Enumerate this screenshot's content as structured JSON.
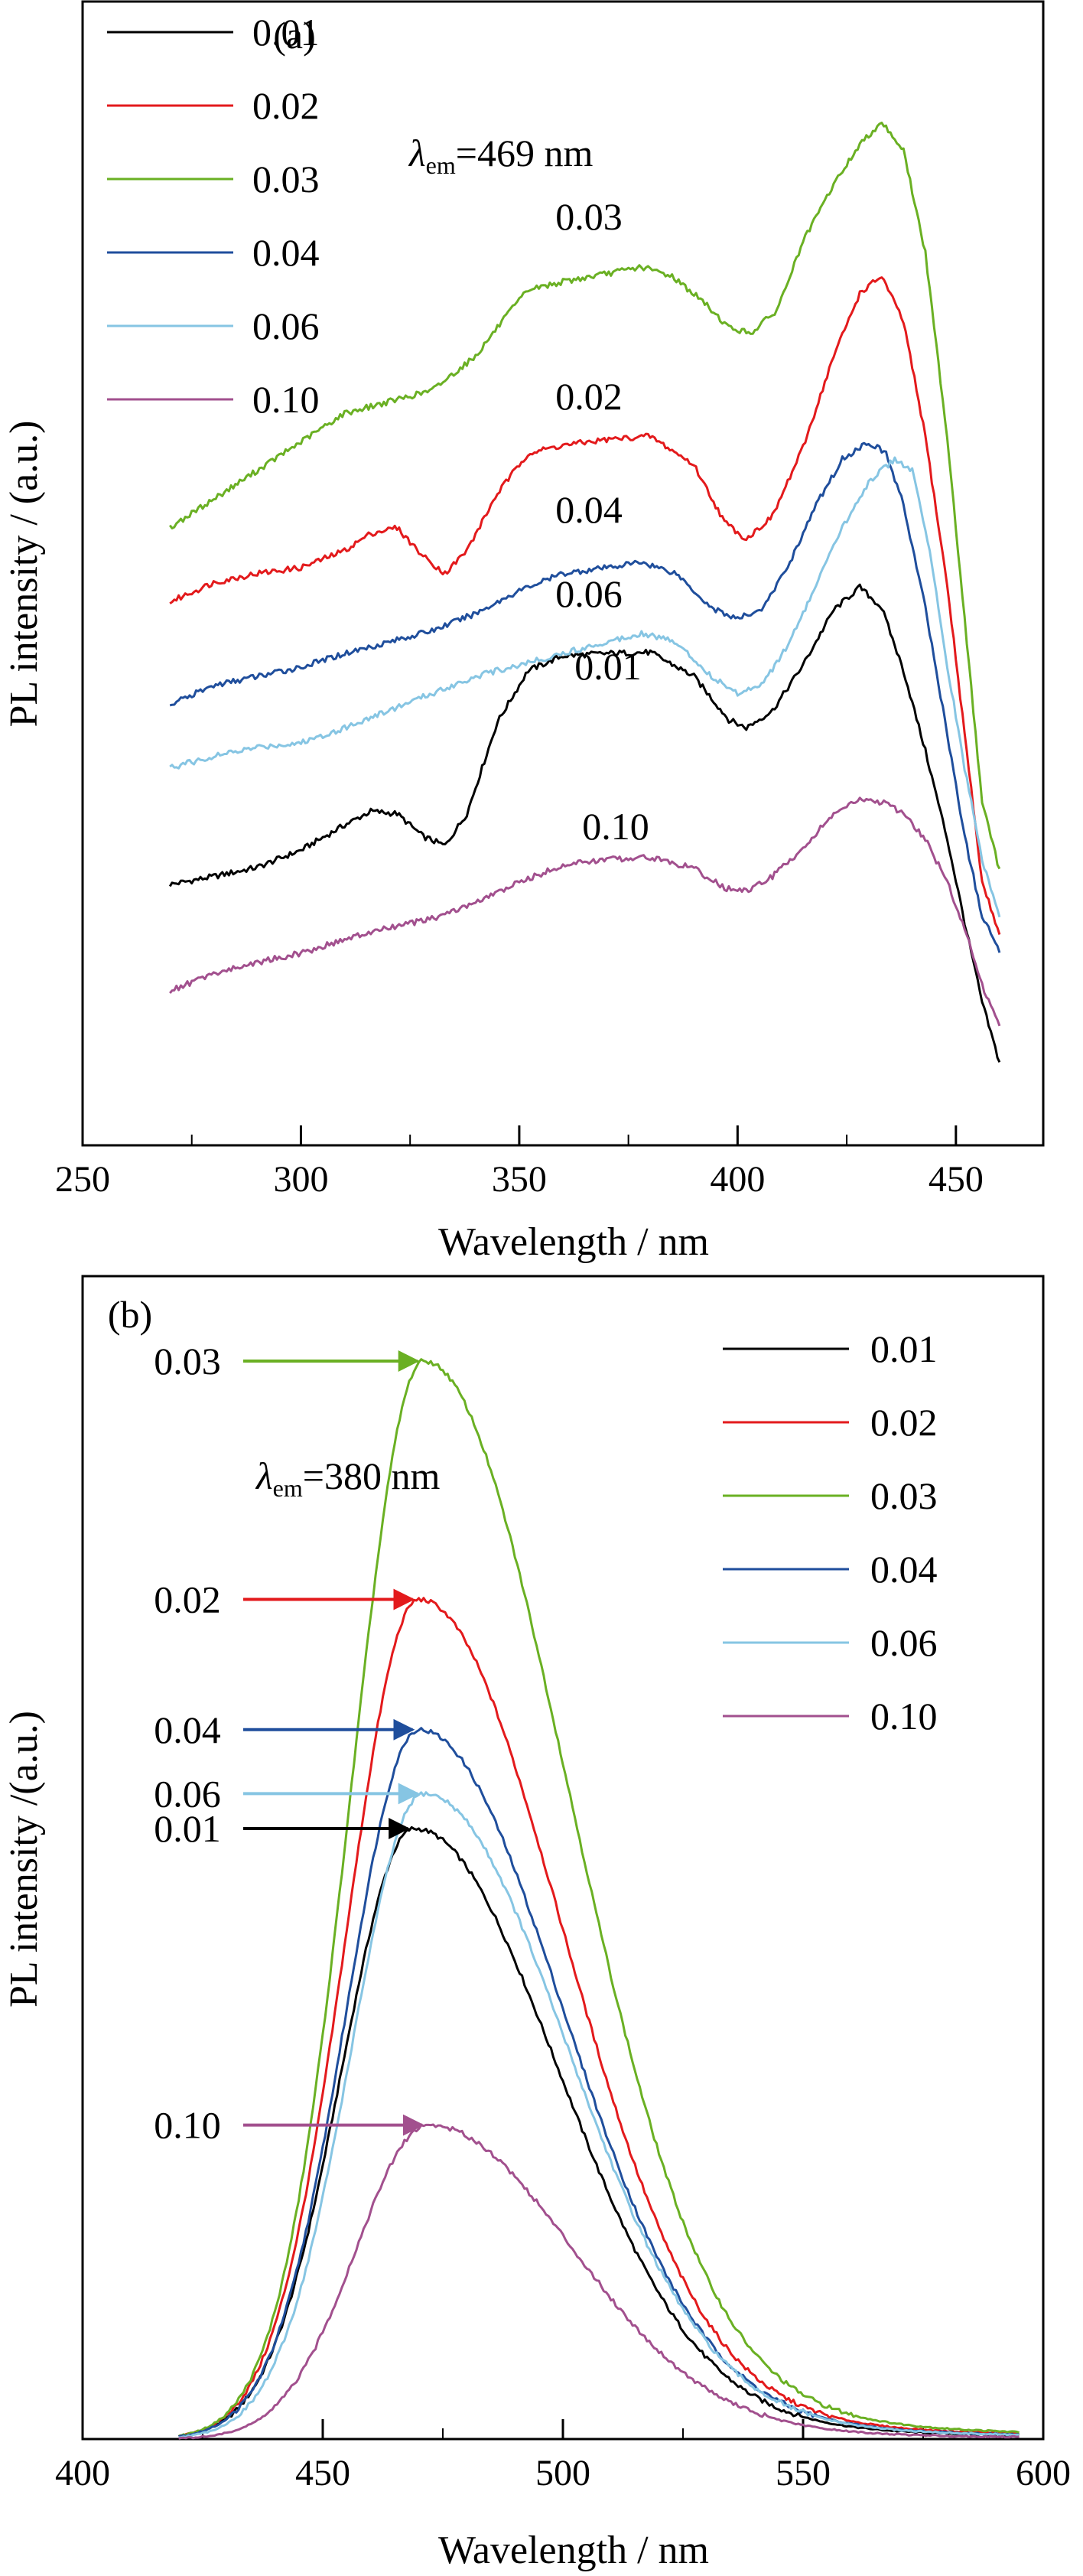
{
  "chart_data": [
    {
      "type": "line",
      "panel_label": "(a)",
      "annotation": {
        "symbol": "λ",
        "subscript": "em",
        "text": "=469 nm"
      },
      "xlabel": "Wavelength / nm",
      "ylabel": "PL intensity / (a.u.)",
      "xlim": [
        250,
        470
      ],
      "ylim": [
        0,
        1
      ],
      "x_ticks": [
        250,
        300,
        350,
        400,
        450
      ],
      "grid": false,
      "legend_position": "top-left",
      "series": [
        {
          "name": "0.01",
          "color": "#000000",
          "points": [
            [
              270,
              0.228
            ],
            [
              280,
              0.235
            ],
            [
              290,
              0.243
            ],
            [
              300,
              0.258
            ],
            [
              310,
              0.28
            ],
            [
              316,
              0.292
            ],
            [
              322,
              0.29
            ],
            [
              328,
              0.27
            ],
            [
              333,
              0.262
            ],
            [
              338,
              0.29
            ],
            [
              345,
              0.37
            ],
            [
              352,
              0.415
            ],
            [
              360,
              0.428
            ],
            [
              370,
              0.43
            ],
            [
              380,
              0.431
            ],
            [
              390,
              0.41
            ],
            [
              398,
              0.372
            ],
            [
              402,
              0.365
            ],
            [
              408,
              0.38
            ],
            [
              415,
              0.42
            ],
            [
              422,
              0.468
            ],
            [
              428,
              0.488
            ],
            [
              433,
              0.47
            ],
            [
              438,
              0.415
            ],
            [
              443,
              0.345
            ],
            [
              448,
              0.268
            ],
            [
              452,
              0.195
            ],
            [
              456,
              0.125
            ],
            [
              460,
              0.072
            ]
          ],
          "label": "0.01"
        },
        {
          "name": "0.02",
          "color": "#e31a1c",
          "points": [
            [
              270,
              0.475
            ],
            [
              280,
              0.492
            ],
            [
              290,
              0.5
            ],
            [
              300,
              0.505
            ],
            [
              310,
              0.52
            ],
            [
              316,
              0.535
            ],
            [
              322,
              0.54
            ],
            [
              328,
              0.515
            ],
            [
              333,
              0.5
            ],
            [
              338,
              0.52
            ],
            [
              345,
              0.57
            ],
            [
              352,
              0.605
            ],
            [
              360,
              0.612
            ],
            [
              370,
              0.617
            ],
            [
              380,
              0.62
            ],
            [
              390,
              0.595
            ],
            [
              397,
              0.545
            ],
            [
              402,
              0.53
            ],
            [
              408,
              0.55
            ],
            [
              415,
              0.61
            ],
            [
              422,
              0.69
            ],
            [
              428,
              0.745
            ],
            [
              433,
              0.76
            ],
            [
              438,
              0.72
            ],
            [
              443,
              0.62
            ],
            [
              448,
              0.49
            ],
            [
              452,
              0.36
            ],
            [
              456,
              0.23
            ],
            [
              460,
              0.185
            ]
          ],
          "label": "0.02"
        },
        {
          "name": "0.03",
          "color": "#6ab023",
          "points": [
            [
              270,
              0.54
            ],
            [
              280,
              0.565
            ],
            [
              290,
              0.59
            ],
            [
              300,
              0.615
            ],
            [
              310,
              0.64
            ],
            [
              320,
              0.65
            ],
            [
              330,
              0.66
            ],
            [
              340,
              0.69
            ],
            [
              346,
              0.72
            ],
            [
              352,
              0.748
            ],
            [
              360,
              0.755
            ],
            [
              370,
              0.762
            ],
            [
              378,
              0.768
            ],
            [
              385,
              0.76
            ],
            [
              392,
              0.738
            ],
            [
              398,
              0.715
            ],
            [
              403,
              0.71
            ],
            [
              409,
              0.73
            ],
            [
              415,
              0.79
            ],
            [
              422,
              0.84
            ],
            [
              428,
              0.875
            ],
            [
              433,
              0.895
            ],
            [
              438,
              0.87
            ],
            [
              443,
              0.78
            ],
            [
              448,
              0.62
            ],
            [
              452,
              0.46
            ],
            [
              456,
              0.3
            ],
            [
              460,
              0.24
            ]
          ],
          "label": "0.03"
        },
        {
          "name": "0.04",
          "color": "#1f4e9c",
          "points": [
            [
              270,
              0.385
            ],
            [
              280,
              0.402
            ],
            [
              290,
              0.41
            ],
            [
              300,
              0.418
            ],
            [
              310,
              0.43
            ],
            [
              320,
              0.44
            ],
            [
              330,
              0.45
            ],
            [
              340,
              0.465
            ],
            [
              350,
              0.485
            ],
            [
              360,
              0.5
            ],
            [
              370,
              0.505
            ],
            [
              378,
              0.51
            ],
            [
              386,
              0.5
            ],
            [
              394,
              0.47
            ],
            [
              400,
              0.46
            ],
            [
              406,
              0.47
            ],
            [
              412,
              0.51
            ],
            [
              418,
              0.56
            ],
            [
              424,
              0.6
            ],
            [
              430,
              0.615
            ],
            [
              434,
              0.605
            ],
            [
              438,
              0.56
            ],
            [
              443,
              0.47
            ],
            [
              448,
              0.36
            ],
            [
              452,
              0.27
            ],
            [
              456,
              0.2
            ],
            [
              460,
              0.17
            ]
          ],
          "label": "0.04"
        },
        {
          "name": "0.06",
          "color": "#86c5e3",
          "points": [
            [
              270,
              0.33
            ],
            [
              280,
              0.34
            ],
            [
              290,
              0.348
            ],
            [
              300,
              0.352
            ],
            [
              310,
              0.365
            ],
            [
              320,
              0.38
            ],
            [
              330,
              0.395
            ],
            [
              340,
              0.41
            ],
            [
              350,
              0.42
            ],
            [
              360,
              0.43
            ],
            [
              370,
              0.44
            ],
            [
              378,
              0.448
            ],
            [
              386,
              0.44
            ],
            [
              394,
              0.41
            ],
            [
              400,
              0.395
            ],
            [
              406,
              0.405
            ],
            [
              412,
              0.44
            ],
            [
              418,
              0.49
            ],
            [
              424,
              0.54
            ],
            [
              430,
              0.58
            ],
            [
              436,
              0.6
            ],
            [
              440,
              0.59
            ],
            [
              444,
              0.52
            ],
            [
              448,
              0.42
            ],
            [
              452,
              0.33
            ],
            [
              456,
              0.25
            ],
            [
              460,
              0.2
            ]
          ],
          "label": "0.06"
        },
        {
          "name": "0.10",
          "color": "#a2508e",
          "points": [
            [
              270,
              0.135
            ],
            [
              280,
              0.15
            ],
            [
              290,
              0.16
            ],
            [
              300,
              0.168
            ],
            [
              310,
              0.18
            ],
            [
              320,
              0.19
            ],
            [
              330,
              0.198
            ],
            [
              340,
              0.212
            ],
            [
              350,
              0.23
            ],
            [
              360,
              0.245
            ],
            [
              370,
              0.25
            ],
            [
              380,
              0.252
            ],
            [
              390,
              0.242
            ],
            [
              397,
              0.225
            ],
            [
              402,
              0.222
            ],
            [
              408,
              0.235
            ],
            [
              415,
              0.26
            ],
            [
              422,
              0.29
            ],
            [
              428,
              0.302
            ],
            [
              433,
              0.3
            ],
            [
              438,
              0.29
            ],
            [
              443,
              0.268
            ],
            [
              448,
              0.23
            ],
            [
              452,
              0.19
            ],
            [
              456,
              0.14
            ],
            [
              460,
              0.105
            ]
          ],
          "label": "0.10"
        }
      ]
    },
    {
      "type": "line",
      "panel_label": "(b)",
      "annotation": {
        "symbol": "λ",
        "subscript": "em",
        "text": "=380 nm"
      },
      "xlabel": "Wavelength / nm",
      "ylabel": "PL intensity /(a.u.)",
      "xlim": [
        400,
        600
      ],
      "ylim": [
        0,
        1
      ],
      "x_ticks": [
        400,
        450,
        500,
        550,
        600
      ],
      "grid": false,
      "legend_position": "top-right",
      "series": [
        {
          "name": "0.01",
          "color": "#000000",
          "peak_x": 469,
          "peak_y": 0.525,
          "label": "0.01"
        },
        {
          "name": "0.02",
          "color": "#e31a1c",
          "peak_x": 470,
          "peak_y": 0.722,
          "label": "0.02"
        },
        {
          "name": "0.03",
          "color": "#6ab023",
          "peak_x": 471,
          "peak_y": 0.927,
          "label": "0.03"
        },
        {
          "name": "0.04",
          "color": "#1f4e9c",
          "peak_x": 470,
          "peak_y": 0.61,
          "label": "0.04"
        },
        {
          "name": "0.06",
          "color": "#86c5e3",
          "peak_x": 471,
          "peak_y": 0.555,
          "label": "0.06"
        },
        {
          "name": "0.10",
          "color": "#a2508e",
          "peak_x": 472,
          "peak_y": 0.27,
          "label": "0.10"
        }
      ]
    }
  ]
}
